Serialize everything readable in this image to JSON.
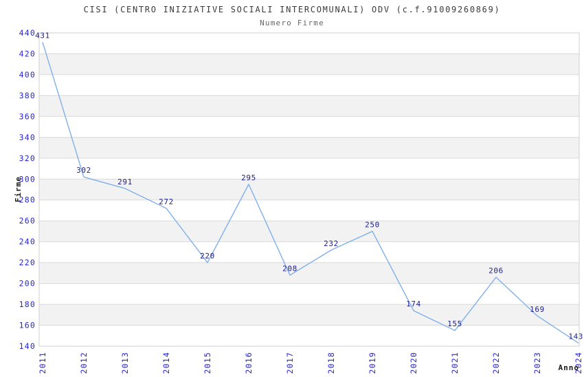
{
  "chart_data": {
    "type": "line",
    "title": "CISI (CENTRO INIZIATIVE SOCIALI INTERCOMUNALI) ODV (c.f.91009260869)",
    "subtitle": "Numero Firme",
    "xlabel": "Anno",
    "ylabel": "Firme",
    "categories": [
      "2011",
      "2012",
      "2013",
      "2014",
      "2015",
      "2016",
      "2017",
      "2018",
      "2019",
      "2020",
      "2021",
      "2022",
      "2023",
      "2024"
    ],
    "values": [
      431,
      302,
      291,
      272,
      220,
      295,
      208,
      232,
      250,
      174,
      155,
      206,
      169,
      143
    ],
    "ylim": [
      140,
      440
    ],
    "ytick_step": 20,
    "yticks": [
      140,
      160,
      180,
      200,
      220,
      240,
      260,
      280,
      300,
      320,
      340,
      360,
      380,
      400,
      420,
      440
    ],
    "grid": "horizontal-bands-alternating",
    "legend": "none",
    "point_labels_visible": true,
    "x_tick_rotation": -90,
    "colors": {
      "line": "#7fb0e8",
      "tick_label": "#2424de",
      "point_label": "#20208f",
      "band_fill": "#f2f2f2",
      "grid_line": "#d9d9d9",
      "plot_border": "#cfcfcf",
      "title_text": "#3a3a3a",
      "subtitle_text": "#666666",
      "axis_title_text": "#1a1a1a",
      "background": "#ffffff"
    }
  }
}
